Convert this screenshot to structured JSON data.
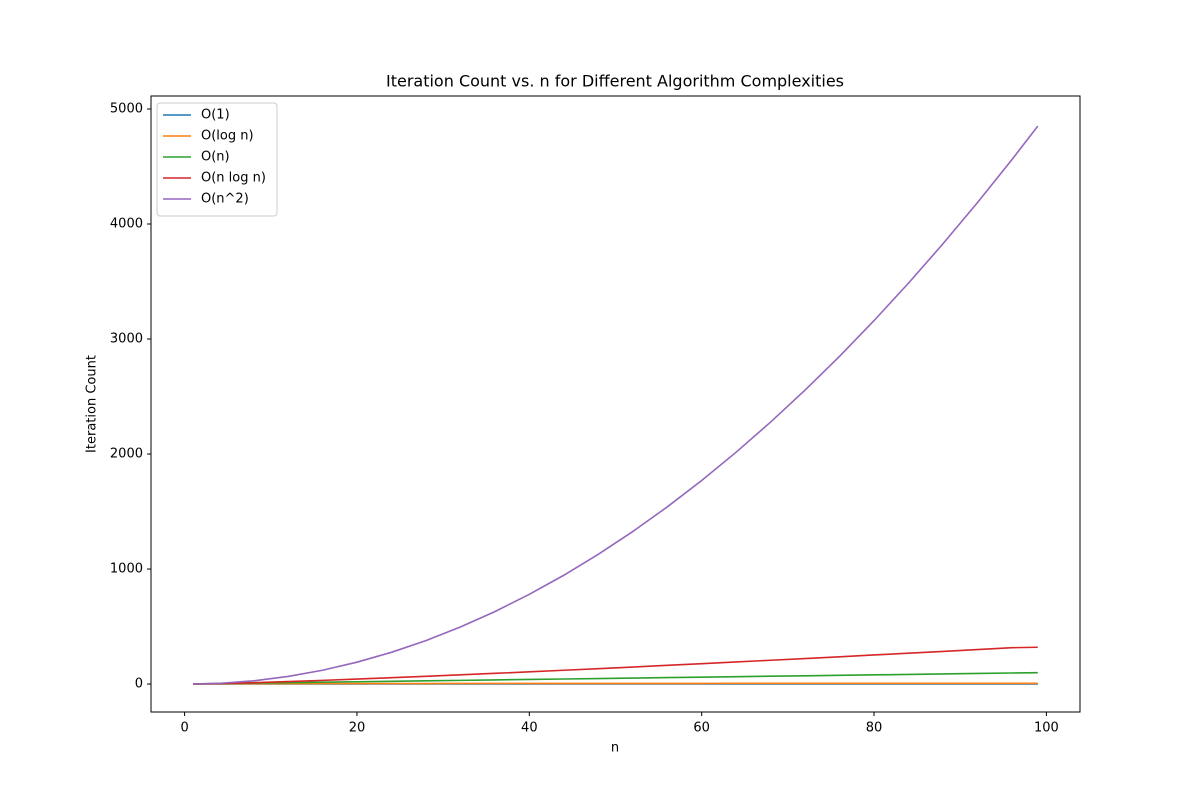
{
  "chart_data": {
    "type": "line",
    "title": "Iteration Count vs. n for Different Algorithm Complexities",
    "x_label": "n",
    "y_label": "Iteration Count",
    "x": [
      1,
      4,
      8,
      12,
      16,
      20,
      24,
      28,
      32,
      36,
      40,
      44,
      48,
      52,
      56,
      60,
      64,
      68,
      72,
      76,
      80,
      84,
      88,
      92,
      96,
      99
    ],
    "series": [
      {
        "name": "O(1)",
        "color": "#1f77b4",
        "values": [
          1,
          1,
          1,
          1,
          1,
          1,
          1,
          1,
          1,
          1,
          1,
          1,
          1,
          1,
          1,
          1,
          1,
          1,
          1,
          1,
          1,
          1,
          1,
          1,
          1,
          1
        ]
      },
      {
        "name": "O(log n)",
        "color": "#ff7f0e",
        "values": [
          0,
          2,
          3,
          3,
          4,
          4,
          4,
          4,
          5,
          5,
          5,
          5,
          5,
          5,
          5,
          5,
          6,
          6,
          6,
          6,
          6,
          6,
          6,
          6,
          6,
          6
        ]
      },
      {
        "name": "O(n)",
        "color": "#2ca02c",
        "values": [
          1,
          4,
          8,
          12,
          16,
          20,
          24,
          28,
          32,
          36,
          40,
          44,
          48,
          52,
          56,
          60,
          64,
          68,
          72,
          76,
          80,
          84,
          88,
          92,
          96,
          99
        ]
      },
      {
        "name": "O(n log n)",
        "color": "#d62728",
        "values": [
          0,
          4,
          12,
          22,
          32,
          43,
          55,
          67,
          80,
          93,
          106,
          120,
          134,
          148,
          163,
          177,
          192,
          207,
          222,
          237,
          253,
          268,
          284,
          300,
          316,
          320
        ]
      },
      {
        "name": "O(n^2)",
        "color": "#9467bd",
        "values": [
          0,
          6,
          28,
          66,
          120,
          190,
          276,
          378,
          496,
          630,
          780,
          946,
          1128,
          1326,
          1540,
          1770,
          2016,
          2278,
          2556,
          2850,
          3160,
          3486,
          3828,
          4186,
          4560,
          4851
        ]
      }
    ],
    "xlim": [
      -3.9,
      103.9
    ],
    "ylim": [
      -243,
      5113
    ],
    "xticks": [
      0,
      20,
      40,
      60,
      80,
      100
    ],
    "yticks": [
      0,
      1000,
      2000,
      3000,
      4000,
      5000
    ],
    "legend": "upper left"
  }
}
